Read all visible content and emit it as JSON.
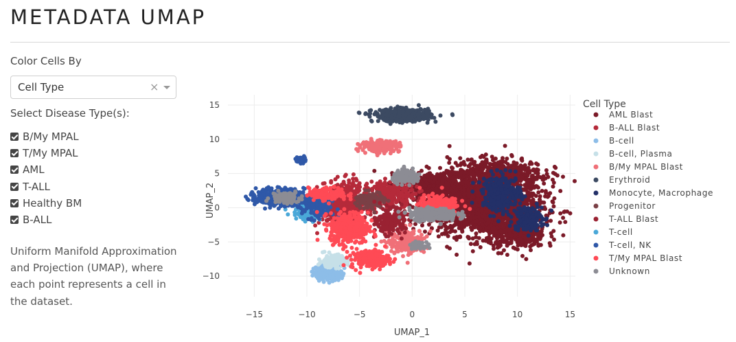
{
  "header": {
    "title": "METADATA UMAP"
  },
  "controls": {
    "color_by_label": "Color Cells By",
    "color_by_value": "Cell Type",
    "disease_label": "Select Disease Type(s):",
    "disease_options": [
      {
        "label": "B/My MPAL",
        "checked": true
      },
      {
        "label": "T/My MPAL",
        "checked": true
      },
      {
        "label": "AML",
        "checked": true
      },
      {
        "label": "T-ALL",
        "checked": true
      },
      {
        "label": "Healthy BM",
        "checked": true
      },
      {
        "label": "B-ALL",
        "checked": true
      }
    ],
    "description": "Uniform Manifold Approximation and Projection (UMAP), where each point represents a cell in the dataset."
  },
  "chart_data": {
    "type": "scatter",
    "xlabel": "UMAP_1",
    "ylabel": "UMAP_2",
    "xlim": [
      -17.5,
      15.5
    ],
    "ylim": [
      -13,
      16.5
    ],
    "xticks": [
      -15,
      -10,
      -5,
      0,
      5,
      10,
      15
    ],
    "yticks": [
      15,
      10,
      5,
      0,
      -5,
      -10
    ],
    "xtick_labels": [
      "−15",
      "−10",
      "−5",
      "0",
      "5",
      "10",
      "15"
    ],
    "ytick_labels": [
      "15",
      "10",
      "5",
      "0",
      "−5",
      "−10"
    ],
    "grid": true,
    "legend_title": "Cell Type",
    "legend_position": "right",
    "series": [
      {
        "name": "AML Blast",
        "color": "#7b1a28",
        "clusters": [
          [
            7,
            0,
            6,
            4.5,
            1600
          ],
          [
            2.5,
            3,
            4,
            2.5,
            500
          ],
          [
            8,
            5,
            5,
            2.5,
            500
          ],
          [
            10,
            -4,
            3,
            2.5,
            300
          ]
        ]
      },
      {
        "name": "B-ALL Blast",
        "color": "#b52a3a",
        "clusters": [
          [
            -6.5,
            0.5,
            2.5,
            3.5,
            550
          ],
          [
            -2,
            2,
            2.5,
            2,
            250
          ]
        ]
      },
      {
        "name": "B-cell",
        "color": "#8dbde8",
        "clusters": [
          [
            -8,
            -9.5,
            1.4,
            1.1,
            300
          ]
        ]
      },
      {
        "name": "B-cell, Plasma",
        "color": "#c6e0e8",
        "clusters": [
          [
            -7.5,
            -7.8,
            1.5,
            1.0,
            160
          ]
        ]
      },
      {
        "name": "B/My MPAL Blast",
        "color": "#f07078",
        "clusters": [
          [
            -3,
            9,
            2,
            0.9,
            220
          ],
          [
            -0.5,
            -5,
            2,
            2,
            200
          ]
        ]
      },
      {
        "name": "Erythroid",
        "color": "#3c4a62",
        "clusters": [
          [
            -1,
            13.5,
            3,
            1,
            420
          ]
        ]
      },
      {
        "name": "Monocyte, Macrophage",
        "color": "#233068",
        "clusters": [
          [
            8.5,
            2,
            2,
            3,
            300
          ],
          [
            11,
            -1.5,
            1.5,
            2,
            200
          ]
        ]
      },
      {
        "name": "Progenitor",
        "color": "#7a4046",
        "clusters": [
          [
            -4,
            1,
            1.5,
            1.5,
            120
          ]
        ]
      },
      {
        "name": "T-ALL Blast",
        "color": "#9a2232",
        "clusters": [
          [
            -2,
            -2,
            1.5,
            2,
            200
          ]
        ]
      },
      {
        "name": "T-cell",
        "color": "#4aa8d8",
        "clusters": [
          [
            -10,
            -0.5,
            1.5,
            1.5,
            120
          ]
        ]
      },
      {
        "name": "T-cell, NK",
        "color": "#2f58a8",
        "clusters": [
          [
            -12.5,
            1.5,
            2.5,
            1.3,
            600
          ],
          [
            -10.5,
            7,
            0.6,
            0.5,
            50
          ],
          [
            -9,
            0,
            1.5,
            2,
            150
          ]
        ]
      },
      {
        "name": "T/My MPAL Blast",
        "color": "#ff4a55",
        "clusters": [
          [
            -6,
            -3,
            2,
            2.5,
            400
          ],
          [
            -4,
            -7.5,
            2,
            1.5,
            200
          ],
          [
            2.5,
            0.5,
            2,
            1.5,
            200
          ],
          [
            -8,
            2,
            2,
            1,
            150
          ]
        ]
      },
      {
        "name": "Unknown",
        "color": "#8c8c94",
        "clusters": [
          [
            2,
            -1,
            2.5,
            1,
            300
          ],
          [
            -0.5,
            4.5,
            1.5,
            1,
            150
          ],
          [
            -12,
            1.5,
            1.5,
            1,
            100
          ],
          [
            0.5,
            -5.5,
            0.8,
            0.5,
            60
          ]
        ]
      }
    ]
  }
}
